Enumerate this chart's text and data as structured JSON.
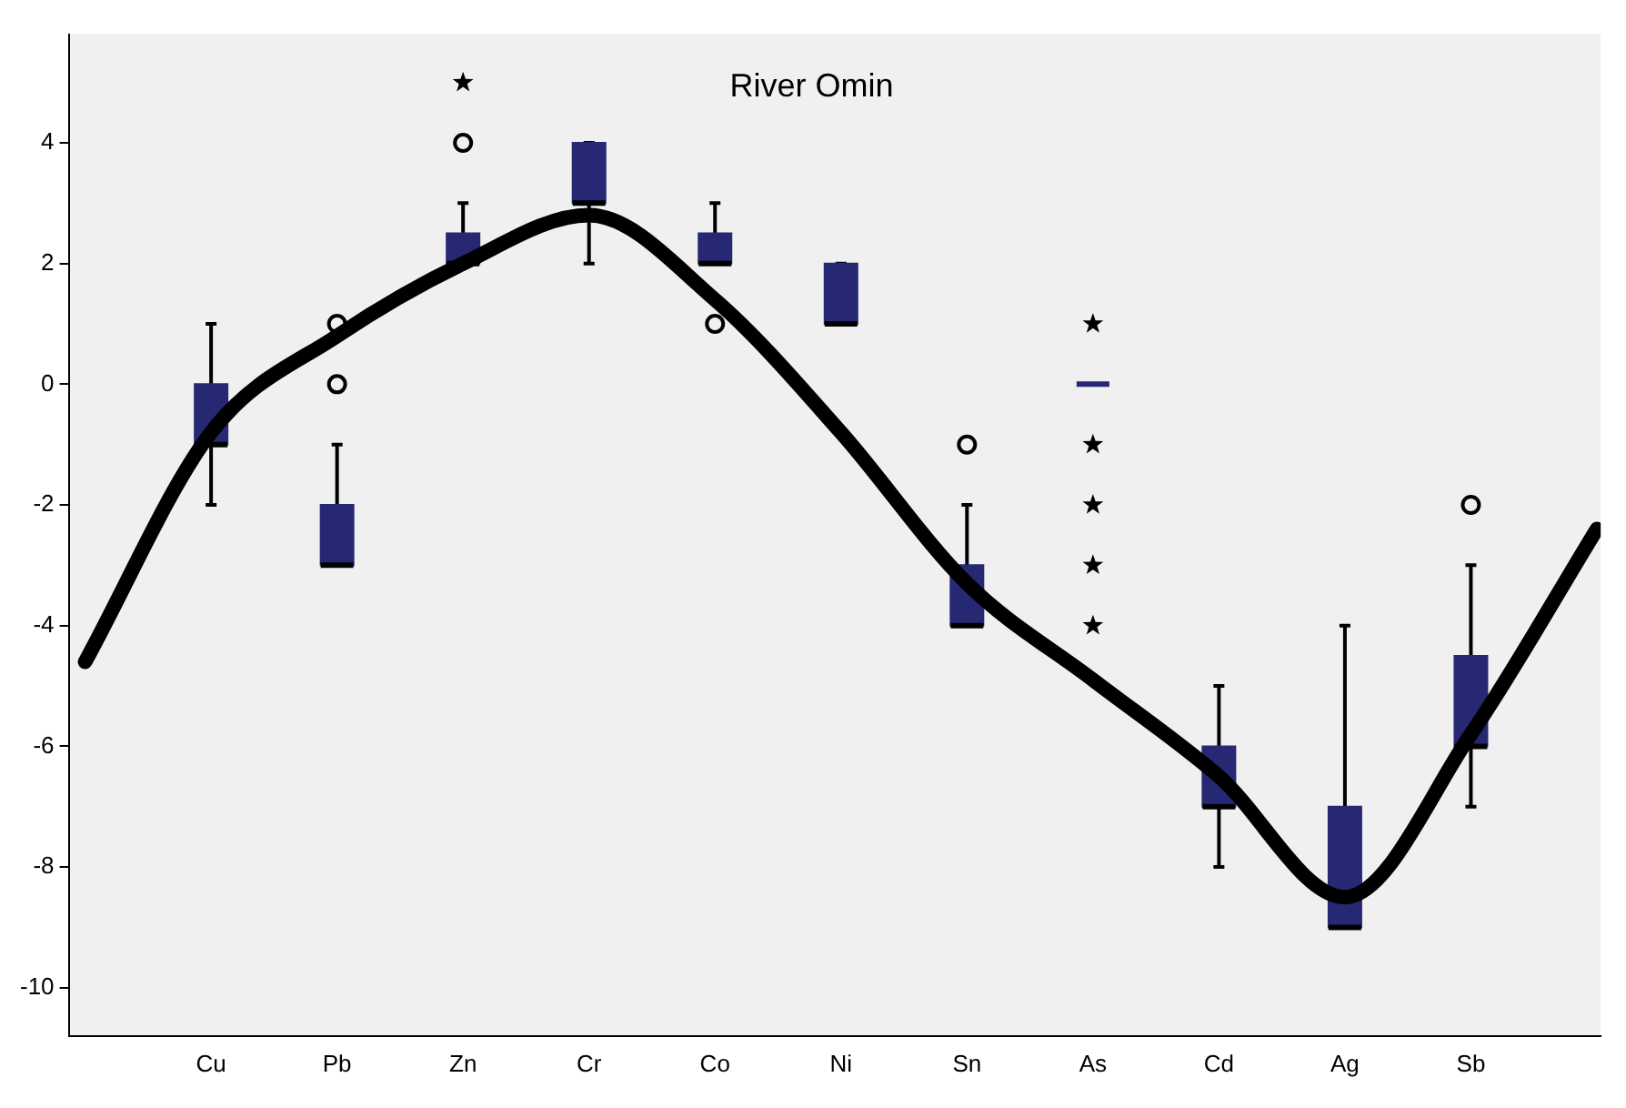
{
  "chart_data": {
    "type": "box",
    "title": "River Omin",
    "categories": [
      null,
      "Cu",
      "Pb",
      "Zn",
      "Cr",
      "Co",
      "Ni",
      "Sn",
      "As",
      "Cd",
      "Ag",
      "Sb",
      null
    ],
    "color": "#262873",
    "boxes": [
      null,
      {
        "low": -2,
        "q1": -1,
        "median": -1,
        "q3": 0,
        "high": 1
      },
      {
        "low": -3,
        "q1": -3,
        "median": -3,
        "q3": -2,
        "high": -1,
        "outliers": [
          0,
          1
        ]
      },
      {
        "low": 2,
        "q1": 2,
        "median": 2,
        "q3": 2.5,
        "high": 3,
        "outliers": [
          4
        ]
      },
      {
        "low": 2,
        "q1": 3,
        "median": 3,
        "q3": 4,
        "high": 4
      },
      {
        "low": 2,
        "q1": 2,
        "median": 2,
        "q3": 2.5,
        "high": 3,
        "outliers": [
          1
        ]
      },
      {
        "low": 1,
        "q1": 1,
        "median": 1,
        "q3": 2,
        "high": 2
      },
      {
        "low": -4,
        "q1": -4,
        "median": -4,
        "q3": -3,
        "high": -2,
        "outliers": [
          -1
        ]
      },
      {
        "low": 0,
        "q1": 0,
        "median": 0,
        "q3": 0,
        "high": 0
      },
      {
        "low": -8,
        "q1": -7,
        "median": -7,
        "q3": -6,
        "high": -5
      },
      {
        "low": -9,
        "q1": -9,
        "median": -9,
        "q3": -7,
        "high": -4
      },
      {
        "low": -7,
        "q1": -6,
        "median": -6,
        "q3": -4.5,
        "high": -3,
        "outliers": [
          -2
        ]
      },
      null
    ],
    "series": [
      {
        "type": "scatter",
        "marker": "star",
        "color": "#000000",
        "x": [
          "Zn",
          "As",
          "As",
          "As",
          "As",
          "As"
        ],
        "values": [
          5,
          1,
          -1,
          -2,
          -3,
          -4
        ]
      },
      {
        "type": "line",
        "marker": "none",
        "color": "#000000",
        "values": [
          -4.6,
          -0.8,
          0.8,
          2,
          2.8,
          1.4,
          -0.8,
          -3.3,
          -4.9,
          -6.5,
          -8.5,
          -5.8,
          -2.4
        ]
      }
    ],
    "ylim": [
      -10.8,
      5.8
    ],
    "yticks": [
      -10,
      -8,
      -6,
      -4,
      -2,
      0,
      2,
      4
    ],
    "grid": false,
    "legend": false
  }
}
